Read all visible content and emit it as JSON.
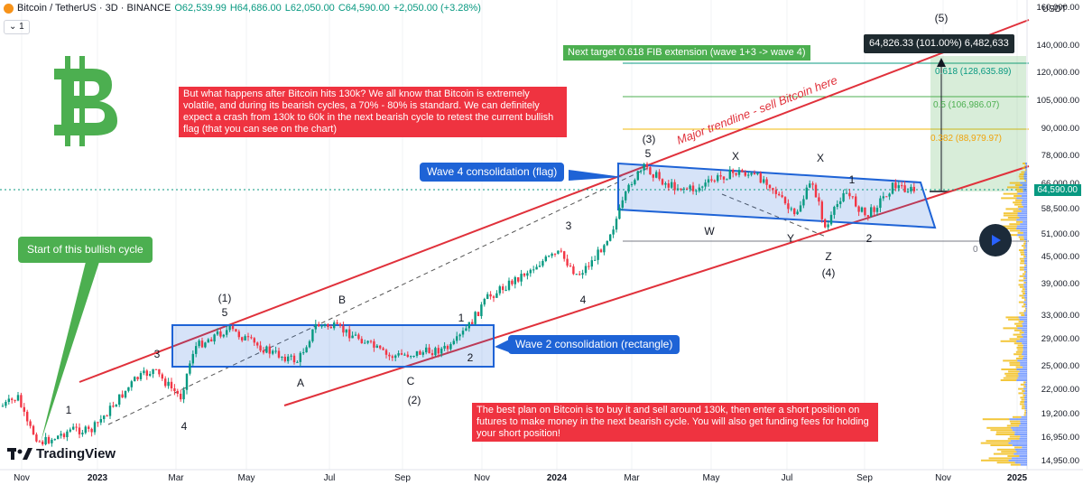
{
  "header": {
    "symbol": "Bitcoin / TetherUS · 3D · BINANCE",
    "open": "O62,539.99",
    "high": "H64,686.00",
    "low": "L62,050.00",
    "close": "C64,590.00",
    "change": "+2,050.00 (+3.28%)",
    "interval_badge": "1",
    "currency": "USDT"
  },
  "brand": {
    "tv_label": "TradingView",
    "btc_color": "#4caf50"
  },
  "colors": {
    "up": "#089981",
    "down": "#f23645",
    "trend": "#e0313b",
    "box": "#1e63d6"
  },
  "chart_data": {
    "type": "candlestick",
    "ylim": [
      14950,
      160000
    ],
    "y_scale": "log",
    "x_ticks": [
      "Nov",
      "2023",
      "Mar",
      "May",
      "Jul",
      "Sep",
      "Nov",
      "2024",
      "Mar",
      "May",
      "Jul",
      "Sep",
      "Nov",
      "2025"
    ],
    "y_ticks": [
      "160,000.00",
      "140,000.00",
      "120,000.00",
      "105,000.00",
      "90,000.00",
      "78,000.00",
      "66,000.00",
      "58,500.00",
      "51,000.00",
      "45,000.00",
      "39,000.00",
      "33,000.00",
      "29,000.00",
      "25,000.00",
      "22,000.00",
      "19,200.00",
      "16,950.00",
      "14,950.00"
    ],
    "last_price": "64,590.00",
    "fib_levels": [
      {
        "label": "0.618 (128,635.89)",
        "value": 128635.89
      },
      {
        "label": "0.5 (106,986.07)",
        "value": 106986.07
      },
      {
        "label": "0.382 (88,979.97)",
        "value": 88979.97
      }
    ],
    "target_label": "Next target 0.618 FIB extension (wave 1+3 -> wave 4)",
    "measure_label": "64,826.33 (101.00%) 6,482,633",
    "trendline_label": "Major trendline - sell Bitcoin here",
    "wave_labels": {
      "w1": "1",
      "w3a": "3",
      "w4a": "4",
      "w1_top": "(1)",
      "w5a": "5",
      "a": "A",
      "b": "B",
      "c": "C",
      "w2": "(2)",
      "w2n": "2",
      "w1b": "1",
      "w3b": "3",
      "w4b": "4",
      "w3": "(3)",
      "w5b": "5",
      "x1": "X",
      "x2": "X",
      "w": "W",
      "y": "Y",
      "z": "Z",
      "w4": "(4)",
      "w1c": "1",
      "w2c": "2",
      "w5": "(5)",
      "zero": "0"
    }
  },
  "notes": {
    "bitcoin_hits": "But what happens after Bitcoin hits 130k? We all know that Bitcoin is extremely volatile, and during its bearish cycles, a 70% - 80% is standard. We can definitely expect a crash from 130k to 60k in the next bearish cycle to retest the current bullish flag (that you can see on the chart)",
    "wave4": "Wave 4 consolidation (flag)",
    "wave2": "Wave 2 consolidation (rectangle)",
    "start_cycle": "Start of this bullish cycle",
    "best_plan": "The best plan on Bitcoin is to buy it and sell around 130k, then enter a short position on futures to make money in the next bearish cycle. You will also get funding fees for holding your short position!"
  }
}
